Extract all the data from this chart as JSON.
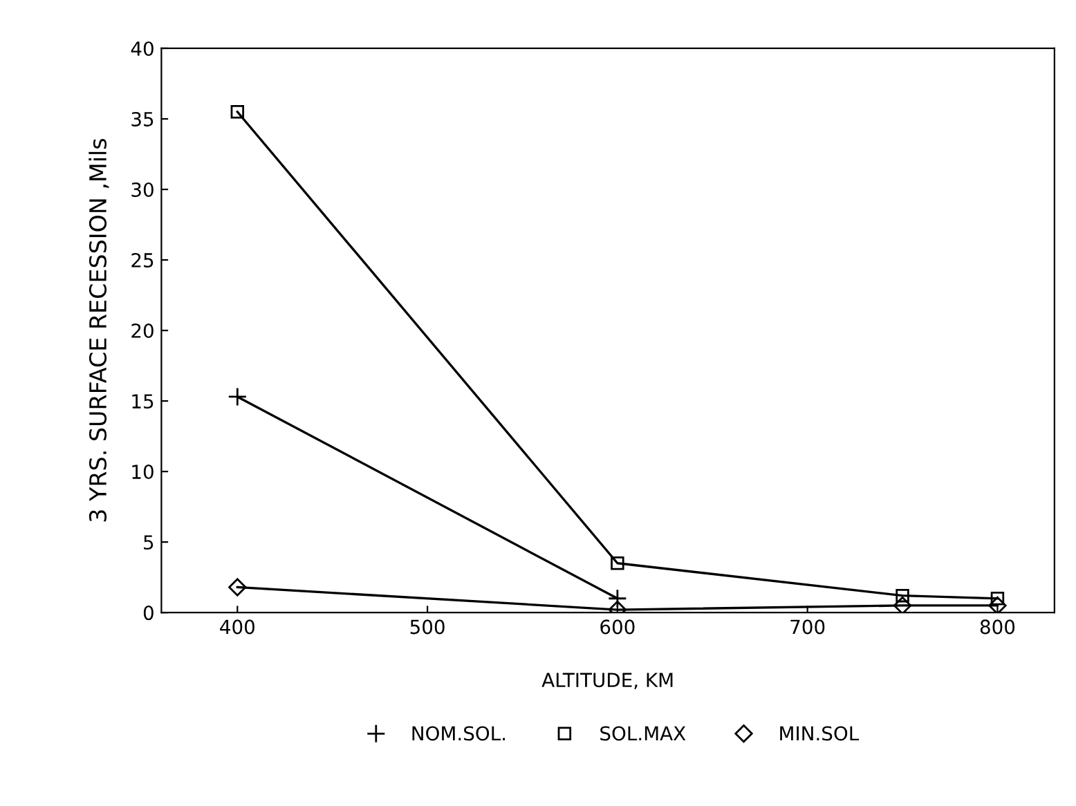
{
  "chart_data": {
    "type": "line",
    "xlabel": "ALTITUDE, KM",
    "ylabel": "3 YRS. SURFACE RECESSION ,Mils",
    "x": [
      400,
      600,
      750,
      800
    ],
    "series": [
      {
        "name": "NOM.SOL.",
        "color": "#000000",
        "marker": "cross",
        "values": [
          15.3,
          1.0,
          null,
          null
        ]
      },
      {
        "name": "SOL.MAX",
        "color": "#000000",
        "marker": "square",
        "values": [
          35.5,
          3.5,
          1.2,
          1.0
        ]
      },
      {
        "name": "MIN.SOL",
        "color": "#000000",
        "marker": "diamond",
        "values": [
          1.8,
          0.2,
          0.5,
          0.5
        ]
      }
    ],
    "xlim": [
      360,
      830
    ],
    "ylim": [
      0,
      40
    ],
    "xticks": [
      400,
      500,
      600,
      700,
      800
    ],
    "yticks": [
      0,
      5,
      10,
      15,
      20,
      25,
      30,
      35,
      40
    ],
    "grid": false,
    "legend": "bottom",
    "line_style": "solid"
  }
}
